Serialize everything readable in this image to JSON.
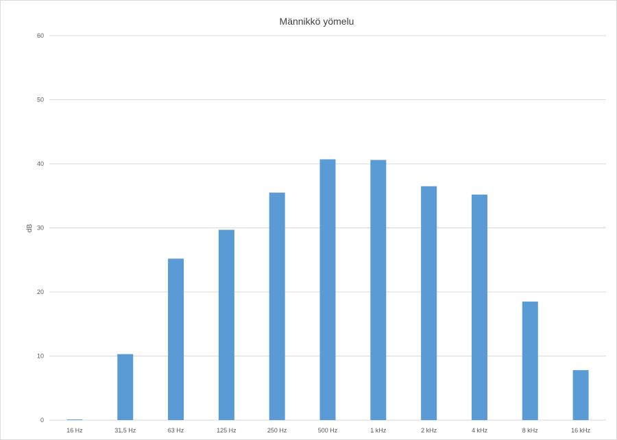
{
  "chart_data": {
    "type": "bar",
    "title": "Männikkö yömelu",
    "xlabel": "",
    "ylabel": "dB",
    "categories": [
      "16 Hz",
      "31.5 Hz",
      "63 Hz",
      "125 Hz",
      "250 Hz",
      "500 Hz",
      "1 kHz",
      "2 kHz",
      "4 kHz",
      "8 kHz",
      "16 kHz"
    ],
    "values": [
      0.1,
      10.3,
      25.2,
      29.7,
      35.5,
      40.7,
      40.6,
      36.5,
      35.2,
      18.5,
      7.8
    ],
    "ylim": [
      0,
      60
    ],
    "yticks": [
      "0",
      "10",
      "20",
      "30",
      "40",
      "50",
      "60"
    ],
    "grid": true,
    "legend": "none",
    "colors": {
      "bar": "#5b9bd5",
      "grid": "#d9d9d9",
      "text": "#595959",
      "border": "#d9d9d9"
    }
  }
}
